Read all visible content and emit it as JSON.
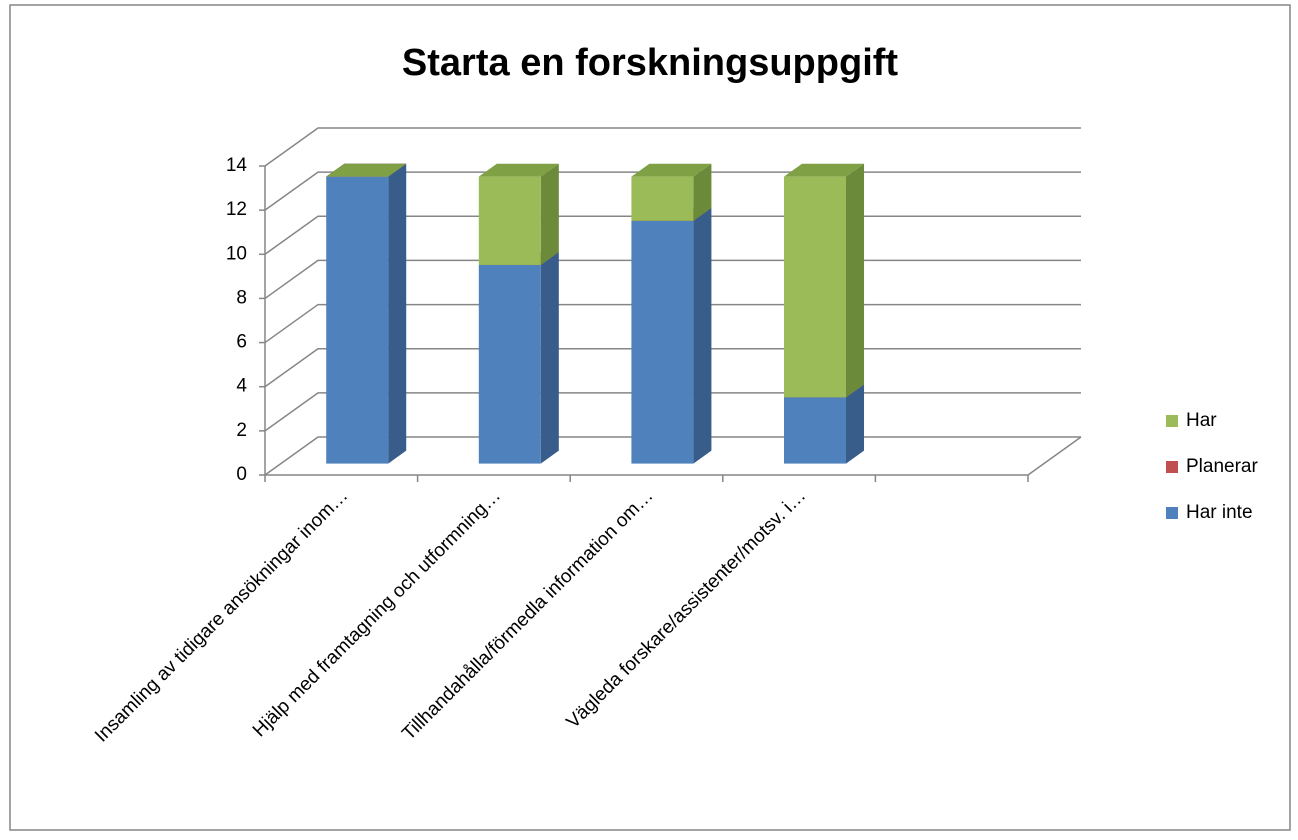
{
  "chart_data": {
    "type": "bar3d_stacked",
    "title": "Starta en forskningsuppgift",
    "categories": [
      "Insamling av tidigare ansökningar inom…",
      "Hjälp med framtagning och utformning…",
      "Tillhandahålla/förmedla information om…",
      "Vägleda forskare/assistenter/motsv. i…",
      null
    ],
    "series": [
      {
        "name": "Har inte",
        "color": "#4f81bd",
        "side": "#385d8a",
        "top": "#3d6aa3",
        "values": [
          13,
          9,
          11,
          3,
          null
        ]
      },
      {
        "name": "Planerar",
        "color": "#c0504d",
        "side": "#8c3836",
        "top": "#a44442",
        "values": [
          0,
          0,
          0,
          0,
          null
        ]
      },
      {
        "name": "Har",
        "color": "#9bbb59",
        "side": "#6b8a3a",
        "top": "#7fa045",
        "values": [
          0,
          4,
          2,
          10,
          null
        ]
      }
    ],
    "ylim": [
      0,
      14
    ],
    "yticks": [
      0,
      2,
      4,
      6,
      8,
      10,
      12,
      14
    ],
    "grid": true,
    "legend": "right"
  }
}
